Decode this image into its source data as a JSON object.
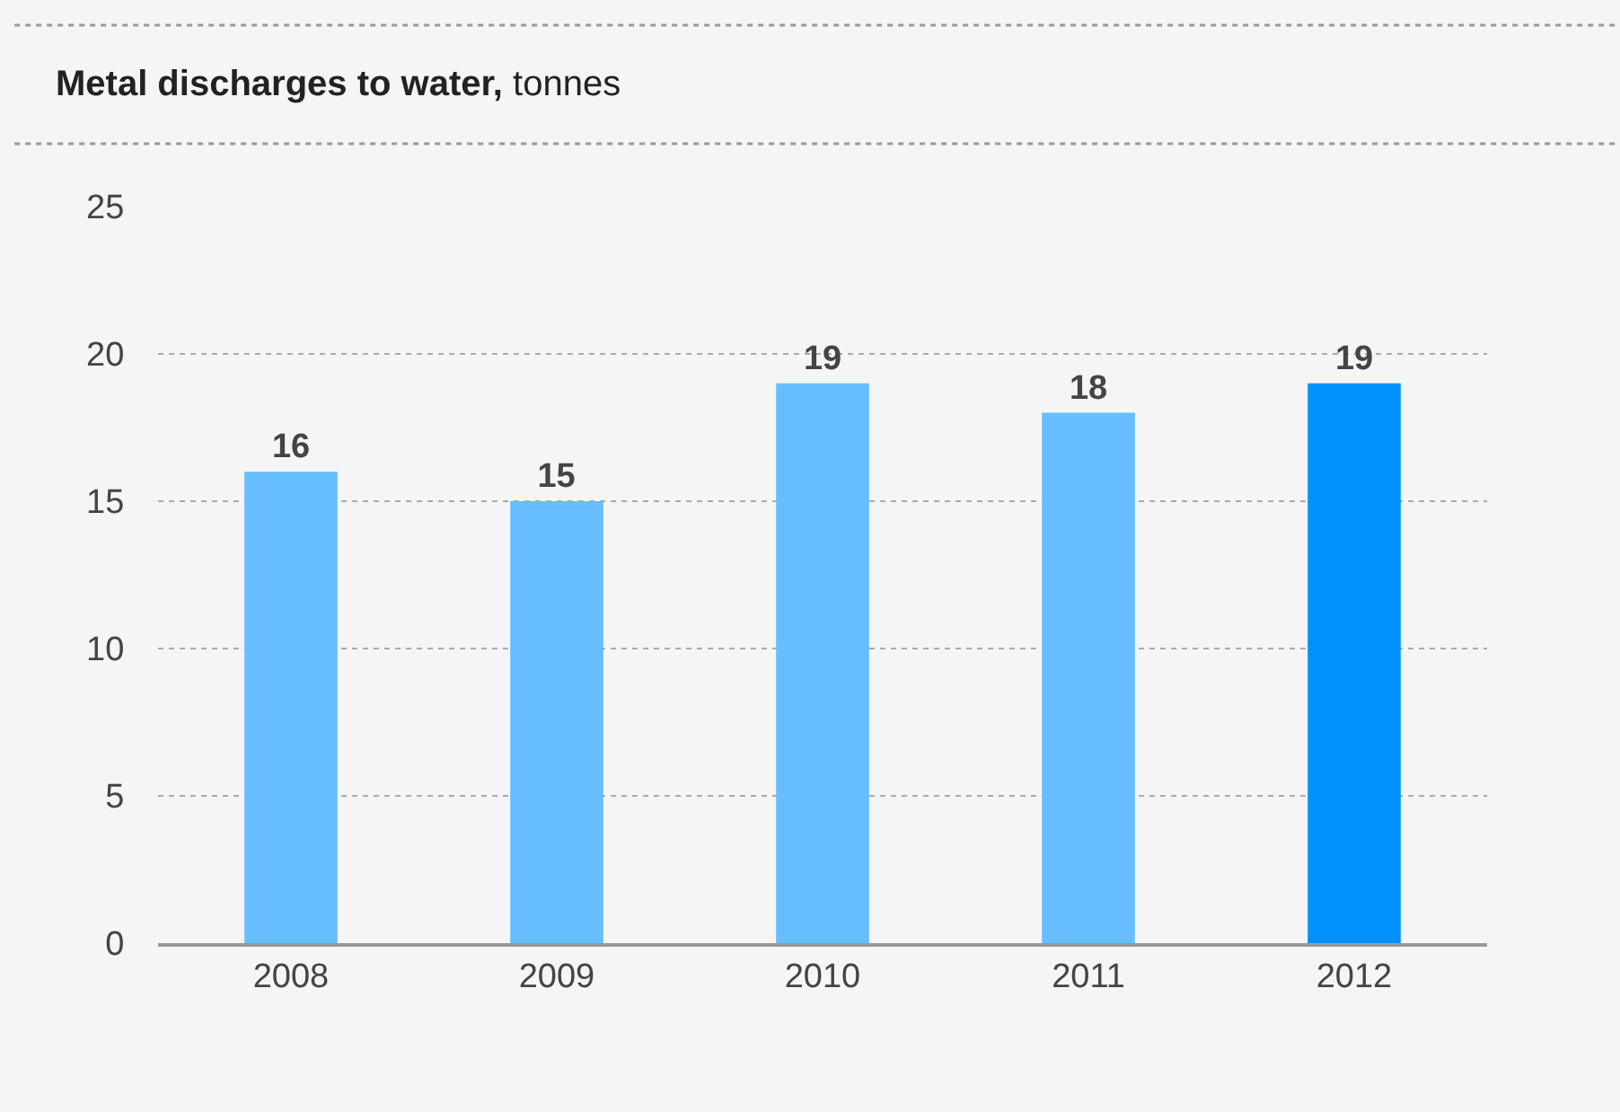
{
  "chart_data": {
    "type": "bar",
    "title": "Metal discharges to water,",
    "subtitle": "tonnes",
    "categories": [
      "2008",
      "2009",
      "2010",
      "2011",
      "2012"
    ],
    "values": [
      16,
      15,
      19,
      18,
      19
    ],
    "colors": [
      "#66bdff",
      "#66bdff",
      "#66bdff",
      "#66bdff",
      "#0091ff"
    ],
    "ylim": [
      0,
      25
    ],
    "yticks": [
      0,
      5,
      10,
      15,
      20,
      25
    ],
    "grid": "y",
    "data_labels": true
  }
}
